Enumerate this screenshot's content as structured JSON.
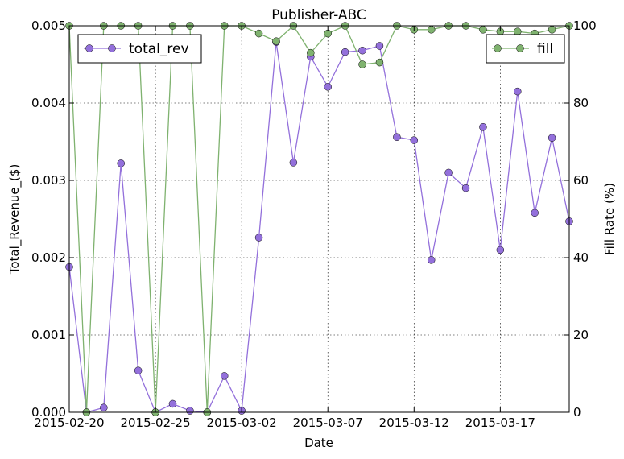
{
  "chart_data": {
    "type": "line",
    "title": "Publisher-ABC",
    "xlabel": "Date",
    "ylabel_left": "Total_Revenue_($)",
    "ylabel_right": "Fill Rate (%)",
    "x_dates": [
      "2015-02-20",
      "2015-02-21",
      "2015-02-22",
      "2015-02-23",
      "2015-02-24",
      "2015-02-25",
      "2015-02-26",
      "2015-02-27",
      "2015-02-28",
      "2015-03-01",
      "2015-03-02",
      "2015-03-03",
      "2015-03-04",
      "2015-03-05",
      "2015-03-06",
      "2015-03-07",
      "2015-03-08",
      "2015-03-09",
      "2015-03-10",
      "2015-03-11",
      "2015-03-12",
      "2015-03-13",
      "2015-03-14",
      "2015-03-15",
      "2015-03-16",
      "2015-03-17",
      "2015-03-18",
      "2015-03-19",
      "2015-03-20",
      "2015-03-21"
    ],
    "xlim": [
      "2015-02-20",
      "2015-03-21"
    ],
    "x_tick_labels": [
      "2015-02-20",
      "2015-02-25",
      "2015-03-02",
      "2015-03-07",
      "2015-03-12",
      "2015-03-17"
    ],
    "ylim_left": [
      0,
      0.005
    ],
    "y_ticks_left": [
      "0.000",
      "0.001",
      "0.002",
      "0.003",
      "0.004",
      "0.005"
    ],
    "ylim_right": [
      0,
      100
    ],
    "y_ticks_right": [
      "0",
      "20",
      "40",
      "60",
      "80",
      "100"
    ],
    "grid": true,
    "series": [
      {
        "name": "total_rev",
        "axis": "left",
        "color": "#9370db",
        "legend_position": "top-left",
        "values": [
          0.00188,
          0.0,
          6e-05,
          0.00322,
          0.00054,
          0.0,
          0.00011,
          2e-05,
          0.0,
          0.00047,
          2e-05,
          0.00226,
          0.00479,
          0.00323,
          0.0046,
          0.00421,
          0.00466,
          0.00468,
          0.00474,
          0.00356,
          0.00352,
          0.00197,
          0.0031,
          0.0029,
          0.00369,
          0.0021,
          0.00415,
          0.00258,
          0.00355,
          0.00247
        ]
      },
      {
        "name": "fill",
        "axis": "right",
        "color": "#7fb26f",
        "legend_position": "top-right",
        "values": [
          100,
          0,
          100,
          100,
          100,
          0,
          100,
          100,
          0,
          100,
          100,
          98,
          96,
          100,
          93,
          98,
          100,
          90,
          90.5,
          100,
          99,
          99,
          100,
          100,
          99,
          98.5,
          98.5,
          98,
          99,
          100
        ]
      }
    ]
  }
}
